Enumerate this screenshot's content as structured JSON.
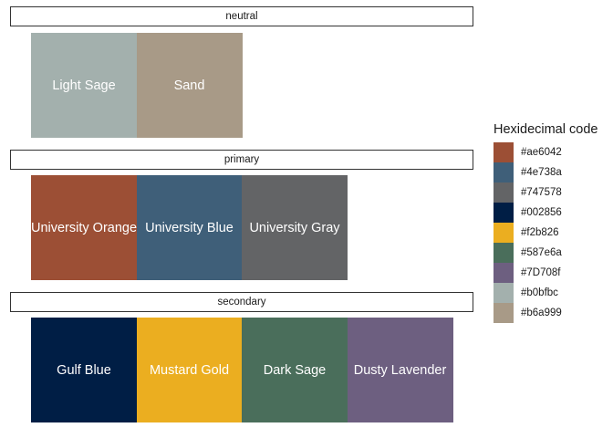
{
  "chart_data": {
    "type": "heatmap",
    "facets": [
      {
        "name": "neutral",
        "tiles": [
          {
            "label": "Light Sage",
            "color": "#a3b0ad"
          },
          {
            "label": "Sand",
            "color": "#a89a87"
          }
        ]
      },
      {
        "name": "primary",
        "tiles": [
          {
            "label": "University Orange",
            "color": "#9c4f35"
          },
          {
            "label": "University Blue",
            "color": "#3f5f79"
          },
          {
            "label": "University Gray",
            "color": "#636466"
          }
        ]
      },
      {
        "name": "secondary",
        "tiles": [
          {
            "label": "Gulf Blue",
            "color": "#001e45"
          },
          {
            "label": "Mustard Gold",
            "color": "#ebae20"
          },
          {
            "label": "Dark Sage",
            "color": "#4a6e5b"
          },
          {
            "label": "Dusty Lavender",
            "color": "#6d5f80"
          }
        ]
      }
    ],
    "legend": {
      "title": "Hexidecimal code",
      "position": "right",
      "entries": [
        {
          "label": "#ae6042",
          "color": "#9c4f35"
        },
        {
          "label": "#4e738a",
          "color": "#3f5f79"
        },
        {
          "label": "#747578",
          "color": "#636466"
        },
        {
          "label": "#002856",
          "color": "#001e45"
        },
        {
          "label": "#f2b826",
          "color": "#ebae20"
        },
        {
          "label": "#587e6a",
          "color": "#4a6e5b"
        },
        {
          "label": "#7D708f",
          "color": "#6d5f80"
        },
        {
          "label": "#b0bfbc",
          "color": "#a3b0ad"
        },
        {
          "label": "#b6a999",
          "color": "#a89a87"
        }
      ]
    }
  }
}
